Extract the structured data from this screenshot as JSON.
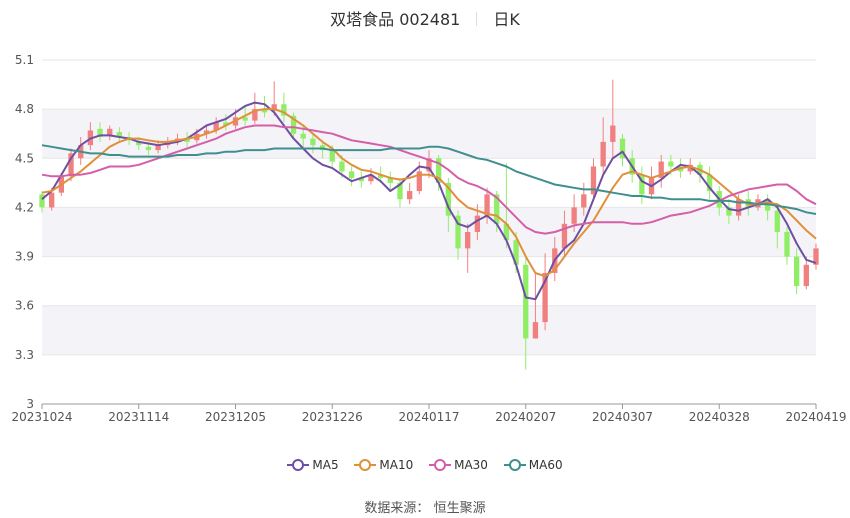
{
  "header": {
    "title": "双塔食品 002481",
    "period": "日K"
  },
  "legend": [
    {
      "label": "MA5",
      "color": "#6e4fa3"
    },
    {
      "label": "MA10",
      "color": "#e0903a"
    },
    {
      "label": "MA30",
      "color": "#d45fa8"
    },
    {
      "label": "MA60",
      "color": "#3f8f8f"
    }
  ],
  "source": {
    "label": "数据来源：",
    "value": "恒生聚源"
  },
  "chart_data": {
    "type": "candlestick",
    "y_ticks": [
      "5.1",
      "4.8",
      "4.5",
      "4.2",
      "3.9",
      "3.6",
      "3.3",
      "3"
    ],
    "ylim": [
      3,
      5.1
    ],
    "x_ticks": [
      "20231024",
      "20231114",
      "20231205",
      "20231226",
      "20240117",
      "20240207",
      "20240307",
      "20240328",
      "20240419"
    ],
    "up_color": "#f08080",
    "down_color": "#90ee66",
    "candles": [
      [
        4.28,
        4.2,
        4.3,
        4.17
      ],
      [
        4.2,
        4.29,
        4.32,
        4.18
      ],
      [
        4.29,
        4.39,
        4.41,
        4.27
      ],
      [
        4.39,
        4.53,
        4.56,
        4.36
      ],
      [
        4.5,
        4.58,
        4.63,
        4.46
      ],
      [
        4.58,
        4.67,
        4.72,
        4.55
      ],
      [
        4.68,
        4.63,
        4.72,
        4.6
      ],
      [
        4.64,
        4.68,
        4.7,
        4.61
      ],
      [
        4.66,
        4.63,
        4.69,
        4.6
      ],
      [
        4.63,
        4.61,
        4.66,
        4.58
      ],
      [
        4.6,
        4.58,
        4.63,
        4.55
      ],
      [
        4.57,
        4.55,
        4.6,
        4.52
      ],
      [
        4.55,
        4.58,
        4.61,
        4.53
      ],
      [
        4.58,
        4.6,
        4.63,
        4.56
      ],
      [
        4.6,
        4.62,
        4.65,
        4.58
      ],
      [
        4.62,
        4.6,
        4.66,
        4.57
      ],
      [
        4.61,
        4.65,
        4.68,
        4.59
      ],
      [
        4.65,
        4.67,
        4.7,
        4.62
      ],
      [
        4.67,
        4.72,
        4.75,
        4.65
      ],
      [
        4.72,
        4.7,
        4.77,
        4.67
      ],
      [
        4.7,
        4.75,
        4.8,
        4.68
      ],
      [
        4.75,
        4.73,
        4.82,
        4.7
      ],
      [
        4.73,
        4.8,
        4.9,
        4.71
      ],
      [
        4.8,
        4.78,
        4.88,
        4.75
      ],
      [
        4.79,
        4.83,
        4.97,
        4.76
      ],
      [
        4.83,
        4.76,
        4.9,
        4.72
      ],
      [
        4.76,
        4.65,
        4.78,
        4.62
      ],
      [
        4.65,
        4.62,
        4.7,
        4.55
      ],
      [
        4.62,
        4.58,
        4.65,
        4.53
      ],
      [
        4.58,
        4.55,
        4.6,
        4.5
      ],
      [
        4.55,
        4.48,
        4.58,
        4.45
      ],
      [
        4.48,
        4.42,
        4.52,
        4.38
      ],
      [
        4.42,
        4.38,
        4.45,
        4.33
      ],
      [
        4.38,
        4.36,
        4.42,
        4.32
      ],
      [
        4.36,
        4.4,
        4.44,
        4.34
      ],
      [
        4.4,
        4.38,
        4.45,
        4.35
      ],
      [
        4.38,
        4.35,
        4.42,
        4.3
      ],
      [
        4.35,
        4.25,
        4.38,
        4.2
      ],
      [
        4.25,
        4.3,
        4.35,
        4.22
      ],
      [
        4.3,
        4.42,
        4.48,
        4.28
      ],
      [
        4.42,
        4.5,
        4.55,
        4.38
      ],
      [
        4.5,
        4.35,
        4.52,
        4.3
      ],
      [
        4.35,
        4.15,
        4.38,
        4.05
      ],
      [
        4.15,
        3.95,
        4.18,
        3.88
      ],
      [
        3.95,
        4.05,
        4.1,
        3.8
      ],
      [
        4.05,
        4.15,
        4.22,
        4.0
      ],
      [
        4.15,
        4.28,
        4.32,
        4.1
      ],
      [
        4.28,
        4.1,
        4.3,
        4.05
      ],
      [
        4.1,
        4.0,
        4.47,
        3.95
      ],
      [
        4.0,
        3.85,
        4.05,
        3.8
      ],
      [
        3.85,
        3.4,
        3.9,
        3.21
      ],
      [
        3.4,
        3.5,
        3.8,
        3.45
      ],
      [
        3.5,
        3.8,
        3.92,
        3.45
      ],
      [
        3.8,
        3.95,
        4.02,
        3.75
      ],
      [
        3.95,
        4.1,
        4.18,
        3.9
      ],
      [
        4.1,
        4.2,
        4.28,
        4.05
      ],
      [
        4.2,
        4.28,
        4.35,
        4.15
      ],
      [
        4.28,
        4.45,
        4.5,
        4.25
      ],
      [
        4.45,
        4.6,
        4.75,
        4.4
      ],
      [
        4.6,
        4.7,
        4.98,
        4.5
      ],
      [
        4.62,
        4.5,
        4.65,
        4.45
      ],
      [
        4.5,
        4.4,
        4.55,
        4.35
      ],
      [
        4.4,
        4.28,
        4.45,
        4.22
      ],
      [
        4.28,
        4.38,
        4.45,
        4.25
      ],
      [
        4.38,
        4.48,
        4.52,
        4.32
      ],
      [
        4.48,
        4.45,
        4.52,
        4.4
      ],
      [
        4.45,
        4.42,
        4.5,
        4.38
      ],
      [
        4.42,
        4.46,
        4.5,
        4.4
      ],
      [
        4.46,
        4.4,
        4.48,
        4.35
      ],
      [
        4.4,
        4.3,
        4.45,
        4.25
      ],
      [
        4.3,
        4.2,
        4.33,
        4.15
      ],
      [
        4.2,
        4.15,
        4.25,
        4.1
      ],
      [
        4.15,
        4.25,
        4.28,
        4.12
      ],
      [
        4.25,
        4.2,
        4.3,
        4.15
      ],
      [
        4.2,
        4.25,
        4.28,
        4.18
      ],
      [
        4.25,
        4.18,
        4.28,
        4.12
      ],
      [
        4.18,
        4.05,
        4.22,
        3.95
      ],
      [
        4.05,
        3.9,
        4.08,
        3.85
      ],
      [
        3.9,
        3.72,
        3.95,
        3.67
      ],
      [
        3.72,
        3.85,
        3.9,
        3.7
      ],
      [
        3.85,
        3.95,
        3.98,
        3.82
      ]
    ],
    "series": [
      {
        "name": "MA5",
        "color": "#6e4fa3",
        "values": [
          4.25,
          4.3,
          4.4,
          4.5,
          4.58,
          4.62,
          4.64,
          4.64,
          4.63,
          4.62,
          4.6,
          4.59,
          4.58,
          4.59,
          4.6,
          4.62,
          4.66,
          4.7,
          4.72,
          4.74,
          4.78,
          4.82,
          4.84,
          4.83,
          4.78,
          4.7,
          4.62,
          4.56,
          4.5,
          4.46,
          4.44,
          4.4,
          4.36,
          4.38,
          4.4,
          4.36,
          4.3,
          4.34,
          4.4,
          4.45,
          4.44,
          4.35,
          4.2,
          4.1,
          4.08,
          4.12,
          4.15,
          4.1,
          4.0,
          3.85,
          3.65,
          3.64,
          3.75,
          3.88,
          3.95,
          4.0,
          4.1,
          4.25,
          4.4,
          4.5,
          4.54,
          4.45,
          4.36,
          4.33,
          4.37,
          4.42,
          4.46,
          4.45,
          4.4,
          4.32,
          4.25,
          4.19,
          4.18,
          4.2,
          4.22,
          4.25,
          4.2,
          4.1,
          3.98,
          3.88,
          3.86
        ]
      },
      {
        "name": "MA10",
        "color": "#e0903a",
        "values": [
          4.29,
          4.3,
          4.34,
          4.38,
          4.42,
          4.47,
          4.52,
          4.57,
          4.6,
          4.62,
          4.62,
          4.61,
          4.6,
          4.6,
          4.61,
          4.62,
          4.63,
          4.65,
          4.67,
          4.7,
          4.73,
          4.76,
          4.79,
          4.8,
          4.8,
          4.78,
          4.74,
          4.7,
          4.65,
          4.6,
          4.56,
          4.5,
          4.46,
          4.43,
          4.42,
          4.4,
          4.38,
          4.37,
          4.38,
          4.4,
          4.4,
          4.38,
          4.32,
          4.25,
          4.2,
          4.18,
          4.16,
          4.15,
          4.1,
          4.02,
          3.9,
          3.8,
          3.78,
          3.82,
          3.9,
          3.98,
          4.05,
          4.12,
          4.22,
          4.32,
          4.4,
          4.42,
          4.4,
          4.38,
          4.4,
          4.42,
          4.44,
          4.45,
          4.43,
          4.4,
          4.35,
          4.3,
          4.25,
          4.22,
          4.22,
          4.23,
          4.22,
          4.18,
          4.12,
          4.06,
          4.01
        ]
      },
      {
        "name": "MA30",
        "color": "#d45fa8",
        "values": [
          4.4,
          4.39,
          4.39,
          4.4,
          4.4,
          4.41,
          4.43,
          4.45,
          4.45,
          4.45,
          4.46,
          4.48,
          4.5,
          4.52,
          4.54,
          4.56,
          4.58,
          4.6,
          4.62,
          4.65,
          4.67,
          4.69,
          4.7,
          4.7,
          4.7,
          4.69,
          4.69,
          4.68,
          4.67,
          4.66,
          4.65,
          4.63,
          4.61,
          4.6,
          4.59,
          4.58,
          4.57,
          4.55,
          4.53,
          4.51,
          4.49,
          4.47,
          4.43,
          4.38,
          4.35,
          4.33,
          4.3,
          4.26,
          4.2,
          4.14,
          4.08,
          4.05,
          4.04,
          4.05,
          4.07,
          4.09,
          4.1,
          4.11,
          4.11,
          4.11,
          4.11,
          4.1,
          4.1,
          4.11,
          4.13,
          4.15,
          4.16,
          4.17,
          4.19,
          4.21,
          4.24,
          4.27,
          4.29,
          4.31,
          4.32,
          4.33,
          4.34,
          4.34,
          4.3,
          4.25,
          4.22
        ]
      },
      {
        "name": "MA60",
        "color": "#3f8f8f",
        "values": [
          4.58,
          4.57,
          4.56,
          4.55,
          4.54,
          4.53,
          4.53,
          4.52,
          4.52,
          4.51,
          4.51,
          4.51,
          4.51,
          4.51,
          4.52,
          4.52,
          4.52,
          4.53,
          4.53,
          4.54,
          4.54,
          4.55,
          4.55,
          4.55,
          4.56,
          4.56,
          4.56,
          4.56,
          4.56,
          4.56,
          4.55,
          4.55,
          4.55,
          4.55,
          4.55,
          4.55,
          4.56,
          4.56,
          4.56,
          4.56,
          4.57,
          4.57,
          4.56,
          4.54,
          4.52,
          4.5,
          4.49,
          4.47,
          4.45,
          4.42,
          4.4,
          4.38,
          4.36,
          4.34,
          4.33,
          4.32,
          4.31,
          4.31,
          4.3,
          4.29,
          4.28,
          4.27,
          4.27,
          4.26,
          4.26,
          4.25,
          4.25,
          4.25,
          4.25,
          4.24,
          4.24,
          4.24,
          4.23,
          4.23,
          4.22,
          4.22,
          4.21,
          4.2,
          4.19,
          4.17,
          4.16
        ]
      }
    ]
  }
}
